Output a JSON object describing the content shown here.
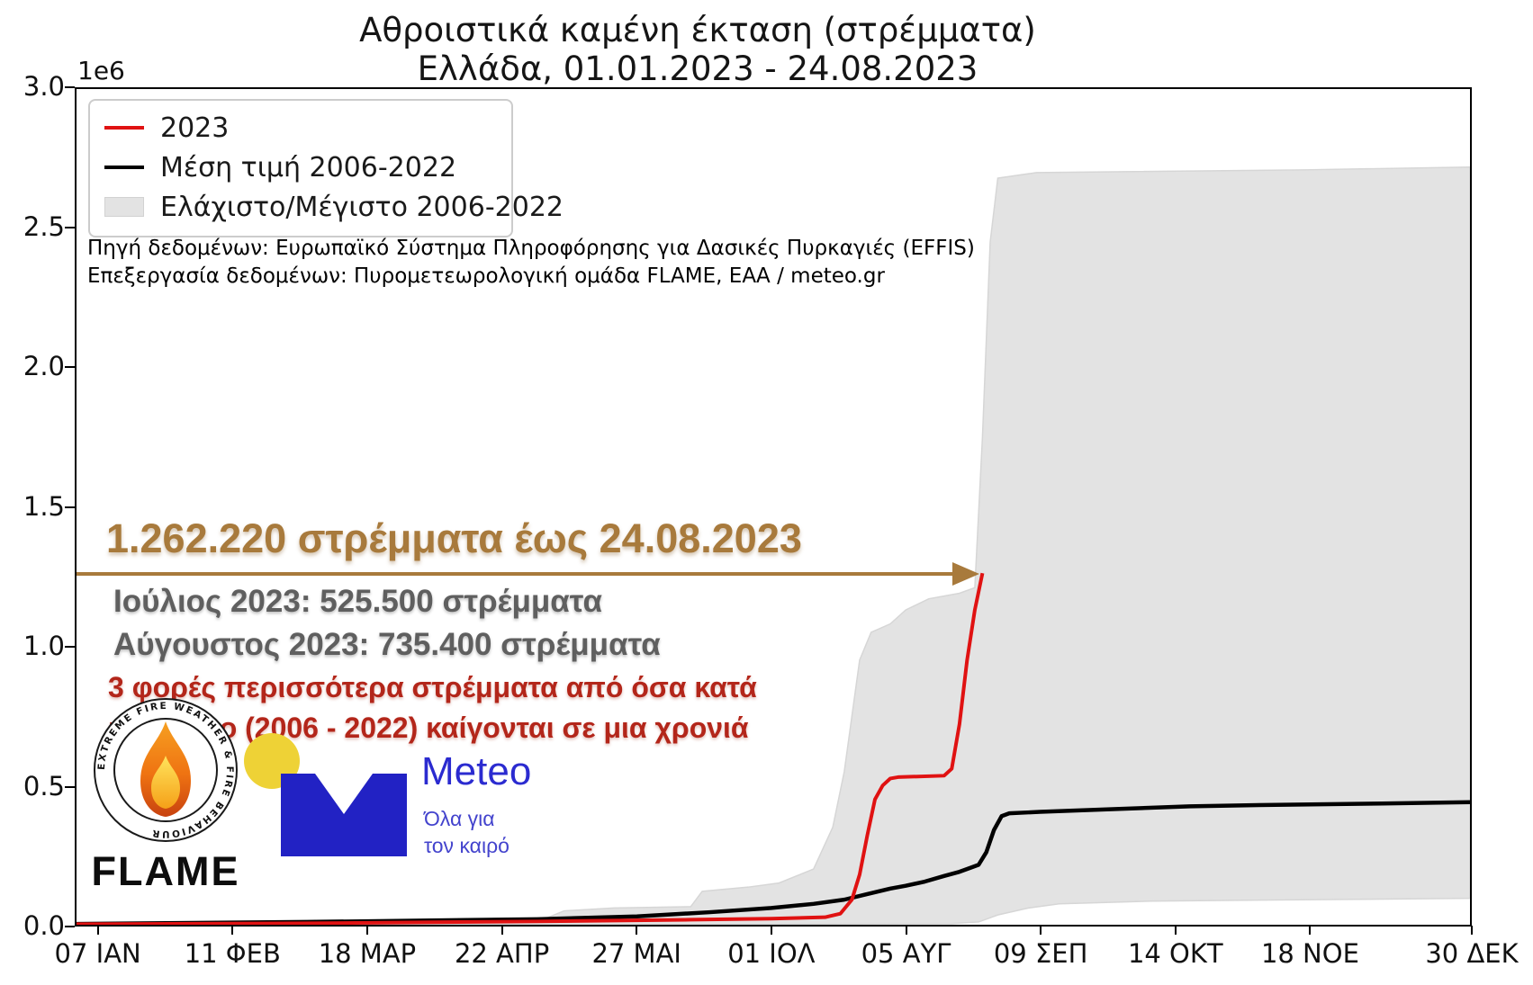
{
  "title": {
    "line1": "Αθροιστικά καμένη έκταση (στρέμματα)",
    "line2": "Ελλάδα, 01.01.2023 - 24.08.2023"
  },
  "legend": {
    "items": [
      {
        "label": "2023",
        "swatch": "line",
        "color": "#e01212"
      },
      {
        "label": "Μέση τιμή 2006-2022",
        "swatch": "line",
        "color": "#000000"
      },
      {
        "label": "Ελάχιστο/Μέγιστο 2006-2022",
        "swatch": "patch",
        "color": "#e3e3e3"
      }
    ]
  },
  "source": {
    "line1": "Πηγή δεδομένων: Ευρωπαϊκό Σύστημα Πληροφόρησης για Δασικές Πυρκαγιές (EFFIS)",
    "line2": "Επεξεργασία δεδομένων: Πυρομετεωρολογική ομάδα FLAME, ΕΑΑ / meteo.gr"
  },
  "annotations": {
    "headline": "1.262.220 στρέμματα έως 24.08.2023",
    "july": "Ιούλιος 2023: 525.500 στρέμματα",
    "august": "Αύγουστος 2023: 735.400 στρέμματα",
    "red_line1": "3 φορές περισσότερα στρέμματα από όσα κατά",
    "red_line2": "μέσο όρο (2006 - 2022) καίγονται σε μια χρονιά"
  },
  "logos": {
    "flame": {
      "ring_text": "EXTREME FIRE WEATHER & FIRE BEHAVIOUR",
      "name": "FLAME"
    },
    "meteo": {
      "name": "Meteo",
      "tagline_line1": "Όλα για",
      "tagline_line2": "τον καιρό"
    }
  },
  "chart_data": {
    "type": "line",
    "title": "Αθροιστικά καμένη έκταση (στρέμματα)",
    "subtitle": "Ελλάδα, 01.01.2023 - 24.08.2023",
    "unit": "1e6 στρέμματα",
    "ylim": [
      0,
      3
    ],
    "grid": false,
    "legend_position": "upper left",
    "x_axis": {
      "unit": "day-of-year 2023",
      "range": [
        0,
        363
      ],
      "tick_days": [
        6,
        41,
        76,
        111,
        146,
        181,
        216,
        251,
        286,
        321,
        363
      ],
      "tick_labels": [
        "07 ΙΑΝ",
        "11 ΦΕΒ",
        "18 ΜΑΡ",
        "22 ΑΠΡ",
        "27 ΜΑΙ",
        "01 ΙΟΛ",
        "05 ΑΥΓ",
        "09 ΣΕΠ",
        "14 ΟΚΤ",
        "18 ΝΟΕ",
        "30 ΔΕΚ"
      ]
    },
    "y_axis": {
      "tick_values": [
        0,
        0.5,
        1,
        1.5,
        2,
        2.5,
        3
      ],
      "tick_labels": [
        "0.0",
        "0.5",
        "1.0",
        "1.5",
        "2.0",
        "2.5",
        "3.0"
      ],
      "offset_label": "1e6"
    },
    "band": {
      "name": "Ελάχιστο/Μέγιστο 2006-2022",
      "color": "#e3e3e3",
      "edge_color": "#d6d6d6",
      "upper": [
        [
          0,
          0.005
        ],
        [
          120,
          0.01
        ],
        [
          127,
          0.05
        ],
        [
          140,
          0.06
        ],
        [
          160,
          0.065
        ],
        [
          163,
          0.12
        ],
        [
          175,
          0.135
        ],
        [
          183,
          0.15
        ],
        [
          192,
          0.2
        ],
        [
          197,
          0.35
        ],
        [
          200,
          0.55
        ],
        [
          204,
          0.95
        ],
        [
          207,
          1.05
        ],
        [
          212,
          1.08
        ],
        [
          216,
          1.13
        ],
        [
          222,
          1.17
        ],
        [
          230,
          1.19
        ],
        [
          234,
          1.21
        ],
        [
          236,
          1.75
        ],
        [
          238,
          2.45
        ],
        [
          240,
          2.68
        ],
        [
          250,
          2.7
        ],
        [
          320,
          2.71
        ],
        [
          363,
          2.72
        ]
      ],
      "lower": [
        [
          0,
          0.001
        ],
        [
          180,
          0.002
        ],
        [
          228,
          0.004
        ],
        [
          235,
          0.01
        ],
        [
          240,
          0.035
        ],
        [
          248,
          0.06
        ],
        [
          256,
          0.075
        ],
        [
          280,
          0.085
        ],
        [
          363,
          0.095
        ]
      ]
    },
    "series": [
      {
        "name": "Μέση τιμή 2006-2022",
        "color": "#000000",
        "width": 4.5,
        "points": [
          [
            0,
            0.003
          ],
          [
            60,
            0.01
          ],
          [
            120,
            0.02
          ],
          [
            146,
            0.03
          ],
          [
            165,
            0.045
          ],
          [
            181,
            0.06
          ],
          [
            192,
            0.075
          ],
          [
            200,
            0.09
          ],
          [
            206,
            0.11
          ],
          [
            212,
            0.13
          ],
          [
            216,
            0.14
          ],
          [
            221,
            0.155
          ],
          [
            226,
            0.175
          ],
          [
            230,
            0.19
          ],
          [
            233,
            0.205
          ],
          [
            235,
            0.215
          ],
          [
            237,
            0.26
          ],
          [
            239,
            0.34
          ],
          [
            241,
            0.39
          ],
          [
            243,
            0.4
          ],
          [
            251,
            0.405
          ],
          [
            270,
            0.415
          ],
          [
            290,
            0.425
          ],
          [
            310,
            0.43
          ],
          [
            340,
            0.435
          ],
          [
            363,
            0.44
          ]
        ]
      },
      {
        "name": "2023",
        "color": "#e01212",
        "width": 4,
        "points": [
          [
            0,
            0.002
          ],
          [
            60,
            0.005
          ],
          [
            120,
            0.012
          ],
          [
            160,
            0.018
          ],
          [
            181,
            0.022
          ],
          [
            195,
            0.027
          ],
          [
            199,
            0.04
          ],
          [
            202,
            0.09
          ],
          [
            204,
            0.18
          ],
          [
            206,
            0.32
          ],
          [
            208,
            0.45
          ],
          [
            210,
            0.5
          ],
          [
            212,
            0.525
          ],
          [
            214,
            0.53
          ],
          [
            226,
            0.535
          ],
          [
            228,
            0.56
          ],
          [
            230,
            0.72
          ],
          [
            232,
            0.95
          ],
          [
            234,
            1.13
          ],
          [
            236,
            1.262
          ]
        ]
      }
    ],
    "callouts": {
      "total_to_24_08_2023_stremmata": 1262220,
      "july_2023_stremmata": 525500,
      "august_2023_stremmata": 735400
    }
  }
}
